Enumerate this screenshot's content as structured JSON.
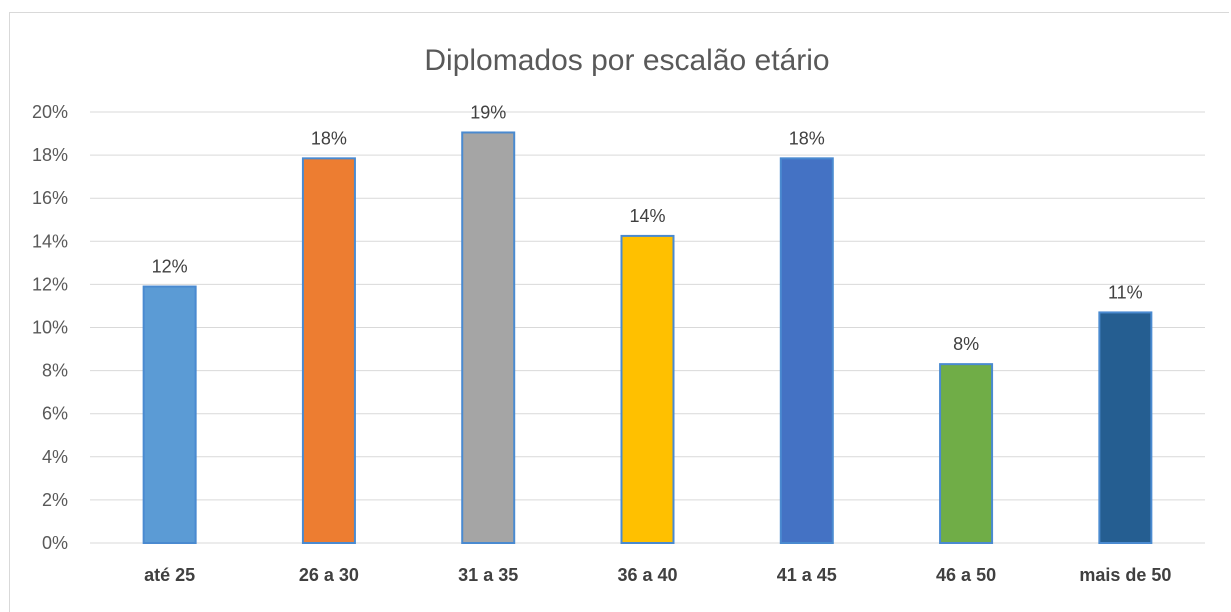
{
  "chart_data": {
    "type": "bar",
    "title": "Diplomados por escalão etário",
    "xlabel": "",
    "ylabel": "",
    "categories": [
      "até 25",
      "26 a 30",
      "31 a 35",
      "36 a 40",
      "41 a 45",
      "46 a 50",
      "mais de 50"
    ],
    "values": [
      12,
      18,
      19,
      14,
      18,
      8,
      11
    ],
    "data_labels": [
      "12%",
      "18%",
      "19%",
      "14%",
      "18%",
      "8%",
      "11%"
    ],
    "plot_values": [
      11.9,
      17.85,
      19.05,
      14.25,
      17.85,
      8.3,
      10.7
    ],
    "colors": [
      "#5b9bd5",
      "#ed7d31",
      "#a5a5a5",
      "#ffc000",
      "#4472c4",
      "#70ad47",
      "#255e91"
    ],
    "ylim": [
      0,
      20
    ],
    "yticks": [
      "0%",
      "2%",
      "4%",
      "6%",
      "8%",
      "10%",
      "12%",
      "14%",
      "16%",
      "18%",
      "20%"
    ],
    "ytick_values": [
      0,
      2,
      4,
      6,
      8,
      10,
      12,
      14,
      16,
      18,
      20
    ],
    "grid": true,
    "legend": "none"
  }
}
